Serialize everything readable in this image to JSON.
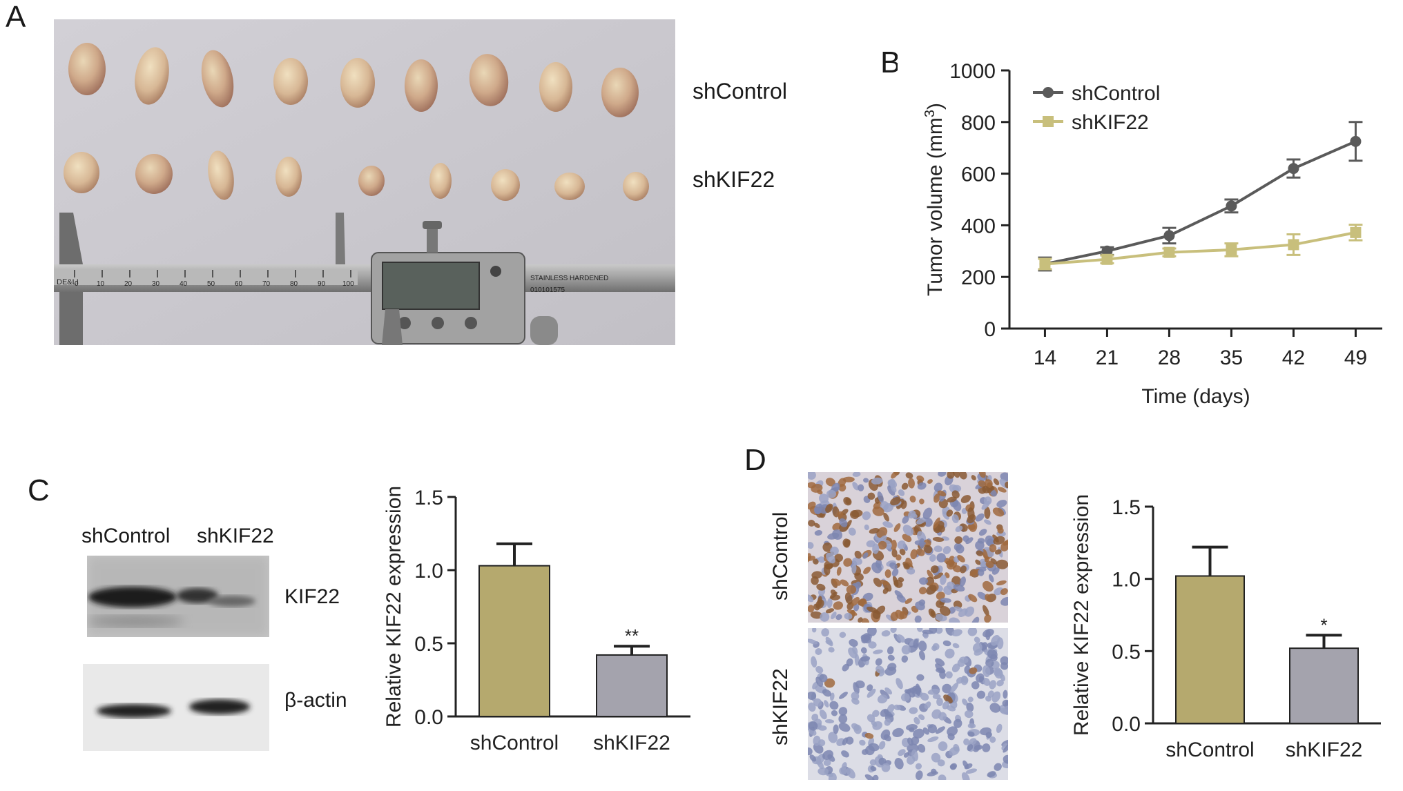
{
  "panels": {
    "A": {
      "letter": "A",
      "row_labels": [
        "shControl",
        "shKIF22"
      ],
      "caliper_text": {
        "brand": "DE&LI",
        "scale": [
          "0",
          "10",
          "20",
          "30",
          "40",
          "50",
          "60",
          "70",
          "80",
          "90",
          "100"
        ],
        "engraving": "STAINLESS HARDENED",
        "serial": "010101575"
      }
    },
    "B": {
      "letter": "B"
    },
    "C": {
      "letter": "C",
      "blot_lanes": [
        "shControl",
        "shKIF22"
      ],
      "blot_rows": [
        "KIF22",
        "β-actin"
      ]
    },
    "D": {
      "letter": "D",
      "ihc_rows": [
        "shControl",
        "shKIF22"
      ]
    }
  },
  "colors": {
    "shControl_line": "#5a5a5a",
    "shKIF22_line": "#c8bf7c",
    "bar_control": "#b5a96e",
    "bar_kif22": "#a4a3ad"
  },
  "chart_data": [
    {
      "id": "B",
      "type": "line",
      "x": [
        14,
        21,
        28,
        35,
        42,
        49
      ],
      "xlabel": "Time (days)",
      "ylabel_main": "Tumor volume (mm",
      "ylabel_sup": "3",
      "ylabel_close": ")",
      "ylim": [
        0,
        1000
      ],
      "yticks": [
        0,
        200,
        400,
        600,
        800,
        1000
      ],
      "legend": "top-left",
      "series": [
        {
          "name": "shControl",
          "values": [
            250,
            300,
            360,
            475,
            620,
            725
          ],
          "errors": [
            25,
            15,
            30,
            25,
            35,
            75
          ],
          "marker": "circle"
        },
        {
          "name": "shKIF22",
          "values": [
            250,
            268,
            295,
            305,
            325,
            372
          ],
          "errors": [
            20,
            15,
            15,
            25,
            40,
            30
          ],
          "marker": "square"
        }
      ]
    },
    {
      "id": "C",
      "type": "bar",
      "categories": [
        "shControl",
        "shKIF22"
      ],
      "values": [
        1.03,
        0.42
      ],
      "errors": [
        0.15,
        0.06
      ],
      "annotations": [
        "",
        "**"
      ],
      "ylabel": "Relative KIF22 expression",
      "ylim": [
        0,
        1.5
      ],
      "yticks": [
        "0.0",
        "0.5",
        "1.0",
        "1.5"
      ]
    },
    {
      "id": "D",
      "type": "bar",
      "categories": [
        "shControl",
        "shKIF22"
      ],
      "values": [
        1.02,
        0.52
      ],
      "errors": [
        0.2,
        0.09
      ],
      "annotations": [
        "",
        "*"
      ],
      "ylabel": "Relative KIF22 expression",
      "ylim": [
        0,
        1.5
      ],
      "yticks": [
        "0.0",
        "0.5",
        "1.0",
        "1.5"
      ]
    }
  ]
}
